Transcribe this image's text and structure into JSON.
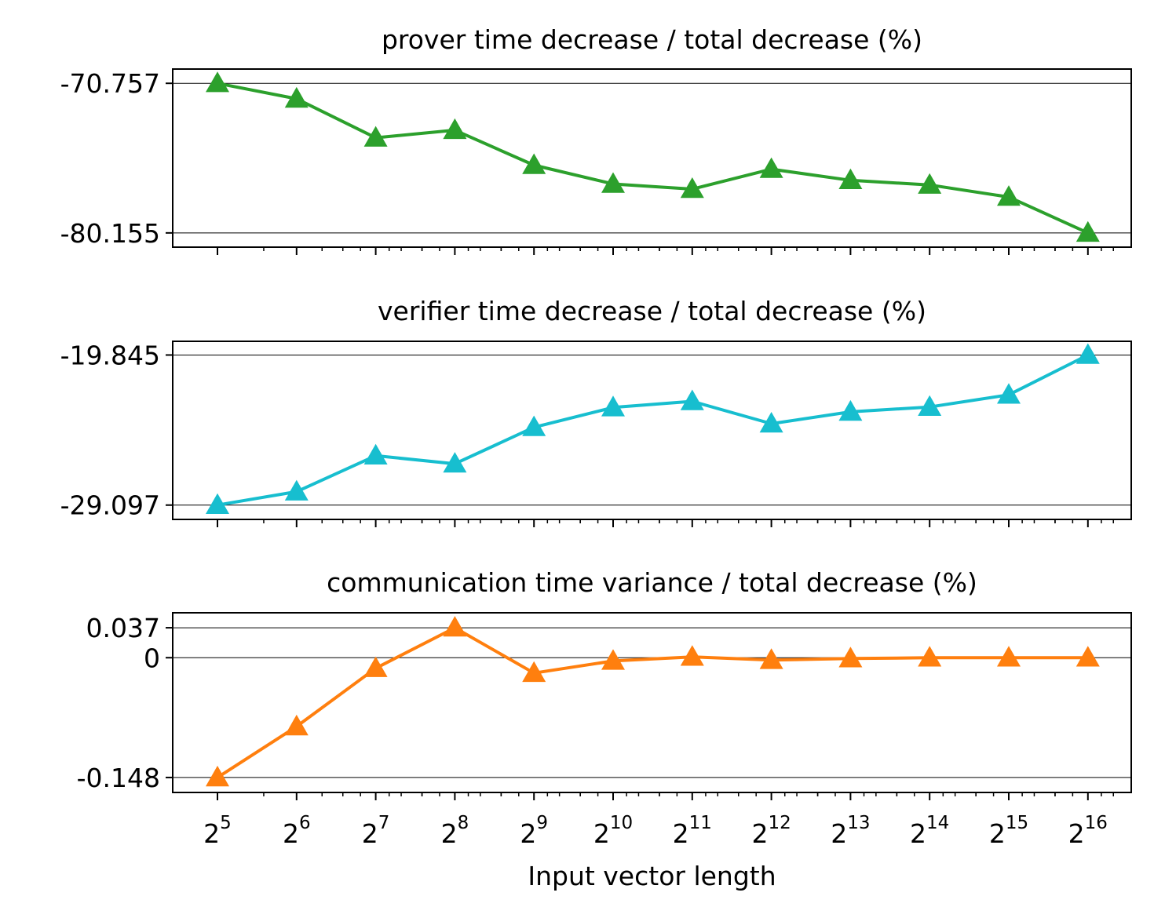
{
  "chart_data": [
    {
      "type": "line",
      "title": "prover time decrease / total decrease (%)",
      "x": [
        5,
        6,
        7,
        8,
        9,
        10,
        11,
        12,
        13,
        14,
        15,
        16
      ],
      "x_tick_labels": [
        {
          "base": "2",
          "exp": "5"
        },
        {
          "base": "2",
          "exp": "6"
        },
        {
          "base": "2",
          "exp": "7"
        },
        {
          "base": "2",
          "exp": "8"
        },
        {
          "base": "2",
          "exp": "9"
        },
        {
          "base": "2",
          "exp": "10"
        },
        {
          "base": "2",
          "exp": "11"
        },
        {
          "base": "2",
          "exp": "12"
        },
        {
          "base": "2",
          "exp": "13"
        },
        {
          "base": "2",
          "exp": "14"
        },
        {
          "base": "2",
          "exp": "15"
        },
        {
          "base": "2",
          "exp": "16"
        }
      ],
      "x_scale": "log2",
      "values": [
        -70.757,
        -71.73,
        -74.18,
        -73.7,
        -75.9,
        -77.08,
        -77.4,
        -76.15,
        -76.85,
        -77.14,
        -77.9,
        -80.155
      ],
      "y_ticks": [
        {
          "value": -70.757,
          "label": "-70.757"
        },
        {
          "value": -80.155,
          "label": "-80.155"
        }
      ],
      "ylim": [
        -81.05,
        -69.86
      ],
      "reference_lines": [
        -70.757,
        -80.155
      ],
      "color": "#2ca02c",
      "marker": "triangle-up",
      "show_xtick_labels": false,
      "xlabel": ""
    },
    {
      "type": "line",
      "title": "verifier time decrease / total decrease (%)",
      "x": [
        5,
        6,
        7,
        8,
        9,
        10,
        11,
        12,
        13,
        14,
        15,
        16
      ],
      "x_tick_labels": [
        {
          "base": "2",
          "exp": "5"
        },
        {
          "base": "2",
          "exp": "6"
        },
        {
          "base": "2",
          "exp": "7"
        },
        {
          "base": "2",
          "exp": "8"
        },
        {
          "base": "2",
          "exp": "9"
        },
        {
          "base": "2",
          "exp": "10"
        },
        {
          "base": "2",
          "exp": "11"
        },
        {
          "base": "2",
          "exp": "12"
        },
        {
          "base": "2",
          "exp": "13"
        },
        {
          "base": "2",
          "exp": "14"
        },
        {
          "base": "2",
          "exp": "15"
        },
        {
          "base": "2",
          "exp": "16"
        }
      ],
      "x_scale": "log2",
      "values": [
        -29.097,
        -28.27,
        -26.05,
        -26.55,
        -24.3,
        -23.08,
        -22.7,
        -24.08,
        -23.35,
        -23.05,
        -22.3,
        -19.845
      ],
      "y_ticks": [
        {
          "value": -19.845,
          "label": "-19.845"
        },
        {
          "value": -29.097,
          "label": "-29.097"
        }
      ],
      "ylim": [
        -29.98,
        -19.0
      ],
      "reference_lines": [
        -19.845,
        -29.097
      ],
      "color": "#17becf",
      "marker": "triangle-up",
      "show_xtick_labels": false,
      "xlabel": ""
    },
    {
      "type": "line",
      "title": "communication time variance / total decrease (%)",
      "x": [
        5,
        6,
        7,
        8,
        9,
        10,
        11,
        12,
        13,
        14,
        15,
        16
      ],
      "x_tick_labels": [
        {
          "base": "2",
          "exp": "5"
        },
        {
          "base": "2",
          "exp": "6"
        },
        {
          "base": "2",
          "exp": "7"
        },
        {
          "base": "2",
          "exp": "8"
        },
        {
          "base": "2",
          "exp": "9"
        },
        {
          "base": "2",
          "exp": "10"
        },
        {
          "base": "2",
          "exp": "11"
        },
        {
          "base": "2",
          "exp": "12"
        },
        {
          "base": "2",
          "exp": "13"
        },
        {
          "base": "2",
          "exp": "14"
        },
        {
          "base": "2",
          "exp": "15"
        },
        {
          "base": "2",
          "exp": "16"
        }
      ],
      "x_scale": "log2",
      "values": [
        -0.148,
        -0.085,
        -0.013,
        0.037,
        -0.019,
        -0.004,
        0.001,
        -0.003,
        -0.001,
        0.0,
        0.0,
        0.0
      ],
      "y_ticks": [
        {
          "value": 0.037,
          "label": "0.037"
        },
        {
          "value": 0,
          "label": "0"
        },
        {
          "value": -0.148,
          "label": "-0.148"
        }
      ],
      "ylim": [
        -0.1665,
        0.0555
      ],
      "reference_lines": [
        0.037,
        0,
        -0.148
      ],
      "color": "#ff7f0e",
      "marker": "triangle-up",
      "show_xtick_labels": true,
      "xlabel": "Input vector length"
    }
  ]
}
